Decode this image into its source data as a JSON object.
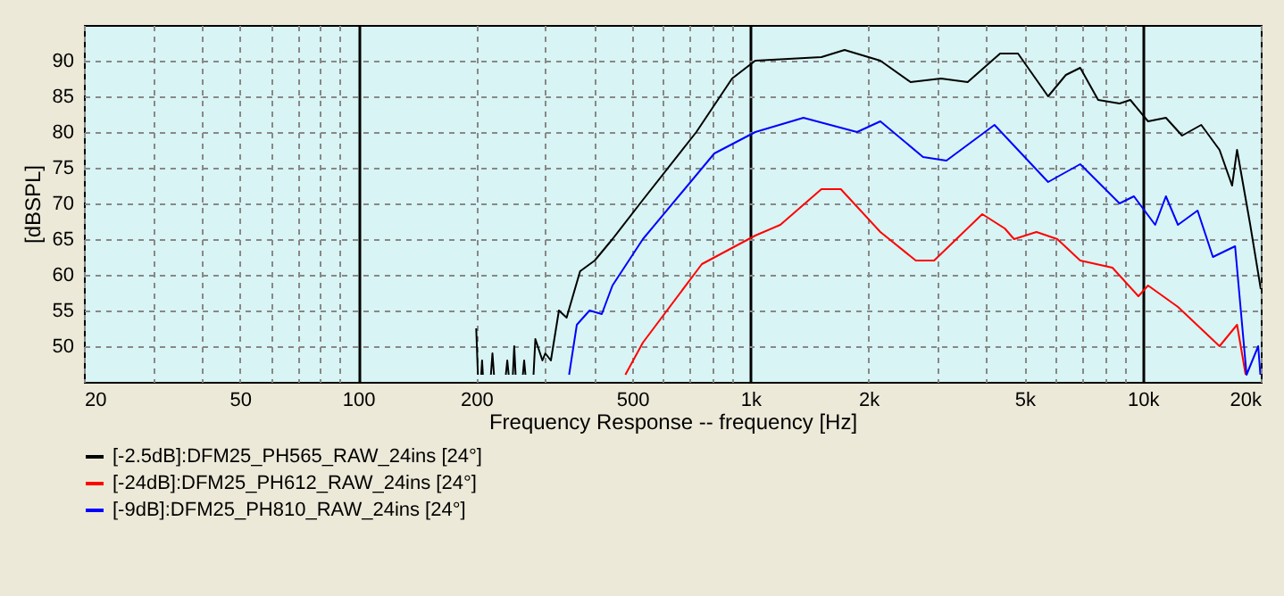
{
  "chart_data": {
    "type": "line",
    "xlabel": "Frequency Response -- frequency [Hz]",
    "ylabel": "[dBSPL]",
    "log": "x",
    "grid": true,
    "legend": "bottom",
    "line_style": "solid",
    "marker": "none",
    "xlim": [
      20,
      20000
    ],
    "ylim": [
      45,
      95
    ],
    "xticks": [
      20,
      {
        "value": 30,
        "label": null
      },
      {
        "value": 40,
        "label": null
      },
      50,
      {
        "value": 60,
        "label": null
      },
      {
        "value": 70,
        "label": null
      },
      {
        "value": 80,
        "label": null
      },
      {
        "value": 90,
        "label": null
      },
      100,
      200,
      {
        "value": 300,
        "label": null
      },
      {
        "value": 400,
        "label": null
      },
      500,
      {
        "value": 600,
        "label": null
      },
      {
        "value": 700,
        "label": null
      },
      {
        "value": 800,
        "label": null
      },
      {
        "value": 900,
        "label": null
      },
      {
        "value": 1000,
        "label": "1k"
      },
      {
        "value": 2000,
        "label": "2k"
      },
      {
        "value": 3000,
        "label": null
      },
      {
        "value": 4000,
        "label": null
      },
      {
        "value": 5000,
        "label": "5k"
      },
      {
        "value": 6000,
        "label": null
      },
      {
        "value": 7000,
        "label": null
      },
      {
        "value": 8000,
        "label": null
      },
      {
        "value": 9000,
        "label": null
      },
      {
        "value": 10000,
        "label": "10k"
      },
      {
        "value": 20000,
        "label": "20k"
      }
    ],
    "yticks": [
      50,
      55,
      60,
      65,
      70,
      75,
      80,
      85,
      90
    ],
    "series": [
      {
        "name": "[-2.5dB]:DFM25_PH565_RAW_24ins [24°]",
        "color": "#000000",
        "x": [
          200,
          202,
          204,
          206,
          207,
          208,
          214,
          218,
          220,
          222,
          230,
          238,
          240,
          242,
          245,
          248,
          250,
          252,
          257,
          263,
          265,
          267,
          274,
          280,
          283,
          295,
          300,
          310,
          325,
          340,
          368,
          401,
          445,
          532,
          728,
          898,
          1029,
          1517,
          1738,
          2144,
          2560,
          3060,
          3580,
          4330,
          4810,
          5740,
          6370,
          6930,
          7700,
          8730,
          9300,
          10320,
          11460,
          12600,
          14100,
          15700,
          16900,
          17400,
          18800,
          20000
        ],
        "values": [
          52.5,
          46,
          null,
          46,
          48,
          46,
          null,
          46,
          49,
          46,
          null,
          46,
          48,
          46,
          null,
          46,
          50,
          46,
          null,
          46,
          48,
          46,
          null,
          46,
          51,
          48,
          49,
          48,
          55,
          54,
          60.5,
          62,
          65,
          70.5,
          80,
          87.5,
          90,
          90.5,
          91.5,
          90,
          87,
          87.5,
          87,
          91,
          91,
          85,
          88,
          89,
          84.5,
          84,
          84.5,
          81.5,
          82,
          79.5,
          81,
          77.5,
          72.5,
          77.5,
          67,
          58
        ]
      },
      {
        "name": "[-24dB]:DFM25_PH612_RAW_24ins [24°]",
        "color": "#ff0000",
        "x": [
          480,
          532,
          752,
          1029,
          1192,
          1517,
          1700,
          2144,
          2640,
          2940,
          3900,
          4450,
          4700,
          5360,
          6060,
          6930,
          8370,
          9750,
          10320,
          12300,
          15700,
          17400,
          18300
        ],
        "values": [
          46,
          50.5,
          61.5,
          65.5,
          67,
          72,
          72,
          66,
          62,
          62,
          68.5,
          66.5,
          65,
          66,
          65,
          62,
          61,
          57,
          58.5,
          55.5,
          50,
          53,
          46
        ]
      },
      {
        "name": "[-9dB]:DFM25_PH810_RAW_24ins [24°]",
        "color": "#0000ff",
        "x": [
          345,
          361,
          389,
          418,
          445,
          532,
          809,
          1029,
          1365,
          1870,
          2144,
          2755,
          3160,
          4190,
          5740,
          6930,
          8730,
          9500,
          10760,
          11460,
          12300,
          13800,
          15100,
          17200,
          18400,
          19700,
          19950
        ],
        "values": [
          46,
          53,
          55,
          54.5,
          58.5,
          65,
          77,
          80,
          82,
          80,
          81.5,
          76.5,
          76,
          81,
          73,
          75.5,
          70,
          71,
          67,
          71,
          67,
          69,
          62.5,
          64,
          46,
          50,
          46
        ]
      }
    ]
  }
}
